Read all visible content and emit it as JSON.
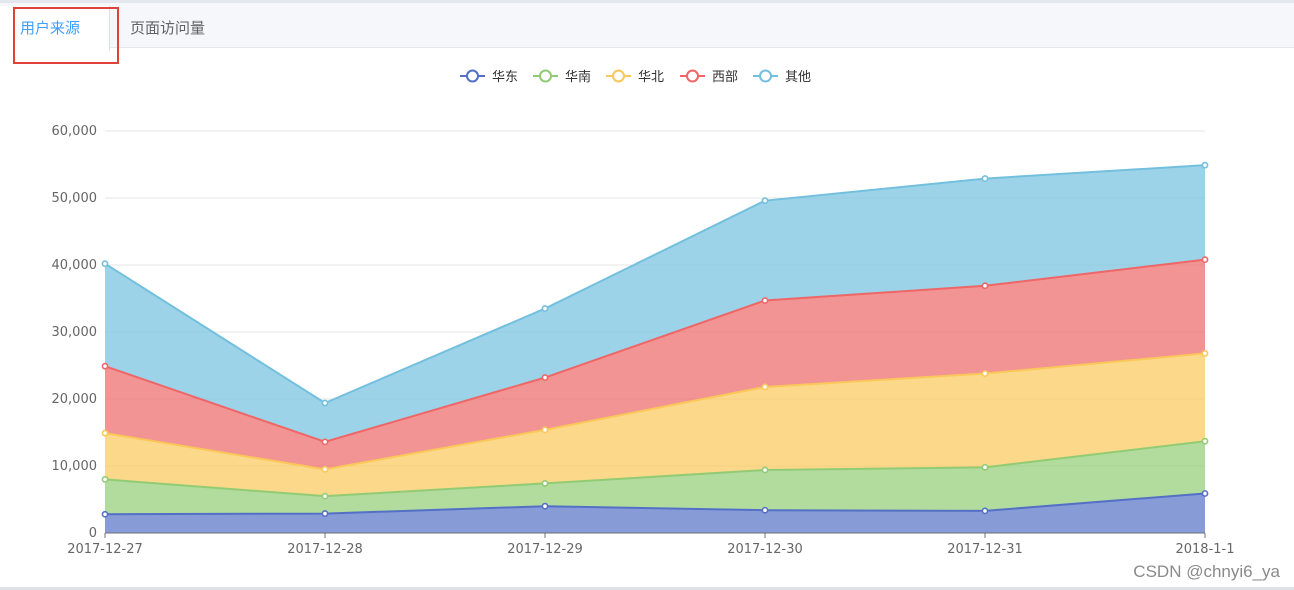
{
  "tabs": [
    {
      "label": "用户来源",
      "active": true
    },
    {
      "label": "页面访问量",
      "active": false
    }
  ],
  "watermark": "CSDN @chnyi6_ya",
  "chart_data": {
    "type": "area",
    "stacked": true,
    "title": "",
    "legend_position": "top-center",
    "categories": [
      "2017-12-27",
      "2017-12-28",
      "2017-12-29",
      "2017-12-30",
      "2017-12-31",
      "2018-1-1"
    ],
    "ylim": [
      0,
      60000
    ],
    "yticks": [
      0,
      10000,
      20000,
      30000,
      40000,
      50000,
      60000
    ],
    "ytick_labels": [
      "0",
      "10,000",
      "20,000",
      "30,000",
      "40,000",
      "50,000",
      "60,000"
    ],
    "grid": true,
    "series": [
      {
        "name": "华东",
        "color": "#5470c6",
        "values": [
          2800,
          2900,
          4000,
          3400,
          3300,
          5900
        ]
      },
      {
        "name": "华南",
        "color": "#91cc75",
        "values": [
          5200,
          2600,
          3400,
          6000,
          6500,
          7800
        ]
      },
      {
        "name": "华北",
        "color": "#fac858",
        "values": [
          6900,
          4000,
          8000,
          12400,
          14000,
          13100
        ]
      },
      {
        "name": "西部",
        "color": "#ee6666",
        "values": [
          10000,
          4100,
          7800,
          12900,
          13100,
          14000
        ]
      },
      {
        "name": "其他",
        "color": "#73c0de",
        "values": [
          15300,
          5800,
          10300,
          14900,
          16000,
          14100
        ]
      }
    ]
  }
}
